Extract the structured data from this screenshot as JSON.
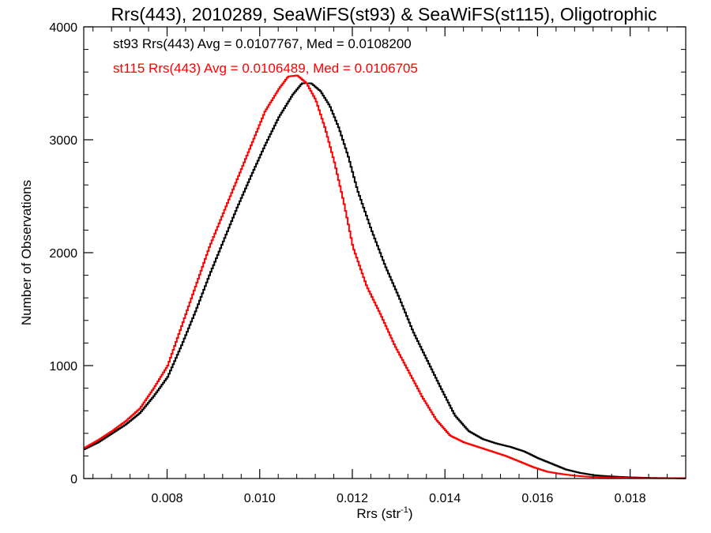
{
  "chart_data": {
    "type": "line",
    "title": "Rrs(443), 2010289, SeaWiFS(st93) & SeaWiFS(st115), Oligotrophic",
    "xlabel": "Rrs (str",
    "xlabel_sup": "-1",
    "xlabel_close": ")",
    "ylabel": "Number of Observations",
    "xlim": [
      0.0062,
      0.0192
    ],
    "ylim": [
      0,
      4000
    ],
    "x_ticks": [
      0.008,
      0.01,
      0.012,
      0.014,
      0.016,
      0.018
    ],
    "x_tick_labels": [
      "0.008",
      "0.010",
      "0.012",
      "0.014",
      "0.016",
      "0.018"
    ],
    "y_ticks": [
      0,
      1000,
      2000,
      3000,
      4000
    ],
    "y_tick_labels": [
      "0",
      "1000",
      "2000",
      "3000",
      "4000"
    ],
    "grid": false,
    "legend_position": "top-left",
    "series": [
      {
        "name": "st93 Rrs(443) Avg = 0.0107767, Med = 0.0108200",
        "color": "#000000",
        "x": [
          0.0062,
          0.0065,
          0.0068,
          0.0071,
          0.0074,
          0.0077,
          0.008,
          0.0083,
          0.0086,
          0.0089,
          0.0092,
          0.0095,
          0.0098,
          0.0101,
          0.0104,
          0.0107,
          0.0109,
          0.0111,
          0.0113,
          0.0115,
          0.0117,
          0.0119,
          0.0121,
          0.0124,
          0.0127,
          0.013,
          0.0133,
          0.0136,
          0.0139,
          0.0142,
          0.0145,
          0.0148,
          0.0151,
          0.0154,
          0.0157,
          0.016,
          0.0163,
          0.0166,
          0.0169,
          0.0172,
          0.0175,
          0.018,
          0.0185,
          0.0192
        ],
        "y": [
          260,
          320,
          400,
          480,
          580,
          730,
          900,
          1180,
          1480,
          1800,
          2100,
          2400,
          2680,
          2950,
          3200,
          3400,
          3500,
          3500,
          3430,
          3300,
          3100,
          2850,
          2550,
          2200,
          1880,
          1600,
          1300,
          1050,
          800,
          560,
          420,
          350,
          310,
          280,
          240,
          180,
          130,
          80,
          50,
          30,
          20,
          10,
          5,
          2
        ]
      },
      {
        "name": "st115 Rrs(443) Avg = 0.0106489, Med = 0.0106705",
        "color": "#ff0000",
        "x": [
          0.0062,
          0.0065,
          0.0068,
          0.0071,
          0.0074,
          0.0077,
          0.008,
          0.0083,
          0.0086,
          0.0089,
          0.0092,
          0.0095,
          0.0098,
          0.0101,
          0.0104,
          0.0106,
          0.0108,
          0.011,
          0.0112,
          0.0114,
          0.0116,
          0.0118,
          0.012,
          0.0123,
          0.0126,
          0.0129,
          0.0132,
          0.0135,
          0.0138,
          0.0141,
          0.0144,
          0.0147,
          0.015,
          0.0153,
          0.0156,
          0.0159,
          0.0162,
          0.0165,
          0.0168,
          0.0171,
          0.0175,
          0.018,
          0.0185,
          0.0192
        ],
        "y": [
          270,
          340,
          420,
          510,
          620,
          800,
          1000,
          1350,
          1700,
          2050,
          2350,
          2650,
          2950,
          3250,
          3450,
          3560,
          3570,
          3500,
          3350,
          3100,
          2800,
          2450,
          2050,
          1700,
          1450,
          1180,
          950,
          720,
          520,
          380,
          320,
          280,
          240,
          200,
          150,
          100,
          60,
          40,
          25,
          15,
          10,
          5,
          3,
          2
        ]
      }
    ]
  }
}
